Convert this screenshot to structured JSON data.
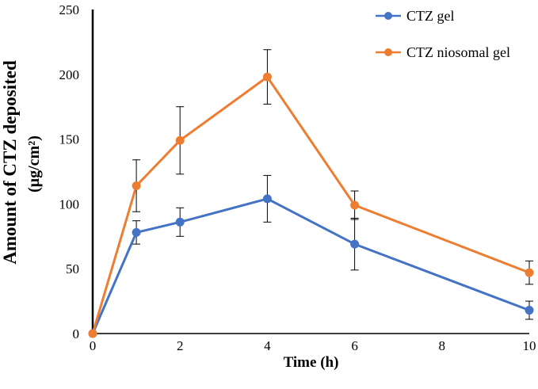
{
  "chart_data": {
    "type": "line",
    "title": "",
    "xlabel": "Time (h)",
    "ylabel_line1": "Amount of CTZ deposited",
    "ylabel_line2": "(μg/cm²)",
    "xlim": [
      0,
      10
    ],
    "ylim": [
      0,
      250
    ],
    "xticks": [
      0,
      2,
      4,
      6,
      8,
      10
    ],
    "yticks": [
      0,
      50,
      100,
      150,
      200,
      250
    ],
    "grid": false,
    "legend_position": "top-right",
    "series": [
      {
        "name": "CTZ gel",
        "color": "#4472C4",
        "x": [
          0,
          1,
          2,
          4,
          6,
          10
        ],
        "y": [
          0,
          78,
          86,
          104,
          69,
          18
        ],
        "error": [
          0,
          9,
          11,
          18,
          20,
          7
        ]
      },
      {
        "name": "CTZ niosomal gel",
        "color": "#ED7D31",
        "x": [
          0,
          1,
          2,
          4,
          6,
          10
        ],
        "y": [
          0,
          114,
          149,
          198,
          99,
          47
        ],
        "error": [
          0,
          20,
          26,
          21,
          11,
          9
        ]
      }
    ]
  }
}
